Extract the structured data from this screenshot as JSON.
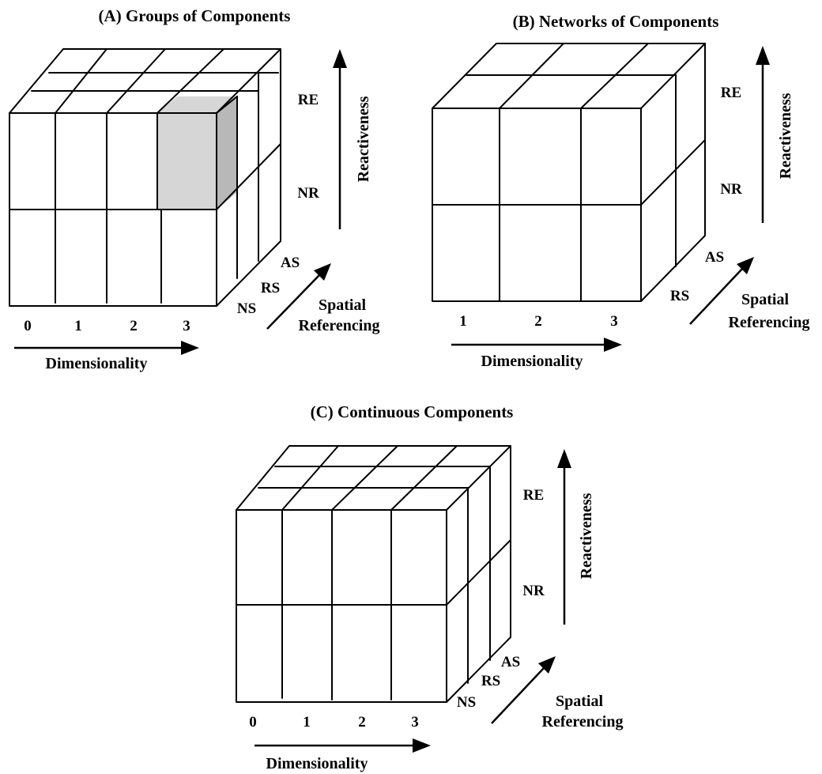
{
  "panels": {
    "a": {
      "title": "(A) Groups of Components",
      "dimensionality_ticks": [
        "0",
        "1",
        "2",
        "3"
      ],
      "dimensionality_label": "Dimensionality",
      "reactiveness_ticks": [
        "RE",
        "NR"
      ],
      "reactiveness_label": "Reactiveness",
      "spatial_ticks": [
        "NS",
        "RS",
        "AS"
      ],
      "spatial_label_line1": "Spatial",
      "spatial_label_line2": "Referencing",
      "highlight_color": "#d6d6d6",
      "highlight_side_color": "#b8b8b8"
    },
    "b": {
      "title": "(B) Networks of Components",
      "dimensionality_ticks": [
        "1",
        "2",
        "3"
      ],
      "dimensionality_label": "Dimensionality",
      "reactiveness_ticks": [
        "RE",
        "NR"
      ],
      "reactiveness_label": "Reactiveness",
      "spatial_ticks": [
        "RS",
        "AS"
      ],
      "spatial_label_line1": "Spatial",
      "spatial_label_line2": "Referencing"
    },
    "c": {
      "title": "(C) Continuous Components",
      "dimensionality_ticks": [
        "0",
        "1",
        "2",
        "3"
      ],
      "dimensionality_label": "Dimensionality",
      "reactiveness_ticks": [
        "RE",
        "NR"
      ],
      "reactiveness_label": "Reactiveness",
      "spatial_ticks": [
        "NS",
        "RS",
        "AS"
      ],
      "spatial_label_line1": "Spatial",
      "spatial_label_line2": "Referencing"
    }
  }
}
